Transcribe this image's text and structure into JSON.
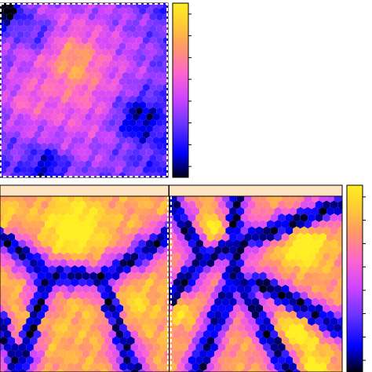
{
  "chart_data": [
    {
      "type": "heatmap",
      "panel": "top",
      "description_shape": "hexagonal binned field",
      "title": "",
      "xlabel": "",
      "ylabel": "",
      "colorbar": {
        "palette": [
          "#000010",
          "#0000ff",
          "#6633ff",
          "#cc44ff",
          "#ff66cc",
          "#ff9966",
          "#ffcc33",
          "#ffee22"
        ],
        "ticks_visible": 8,
        "tick_labels": []
      }
    },
    {
      "type": "heatmap",
      "panel": "bottom-left",
      "strip_label": "",
      "strip_color": "#ffe4c4",
      "title": "",
      "xlabel": "",
      "ylabel": ""
    },
    {
      "type": "heatmap",
      "panel": "bottom-right",
      "strip_label": "",
      "strip_color": "#ffe4c4",
      "title": "",
      "xlabel": "",
      "ylabel": "",
      "colorbar": {
        "palette": [
          "#000010",
          "#0000ff",
          "#6633ff",
          "#cc44ff",
          "#ff66cc",
          "#ff9966",
          "#ffcc33",
          "#ffee22"
        ],
        "ticks_visible": 8,
        "tick_labels": []
      }
    }
  ]
}
